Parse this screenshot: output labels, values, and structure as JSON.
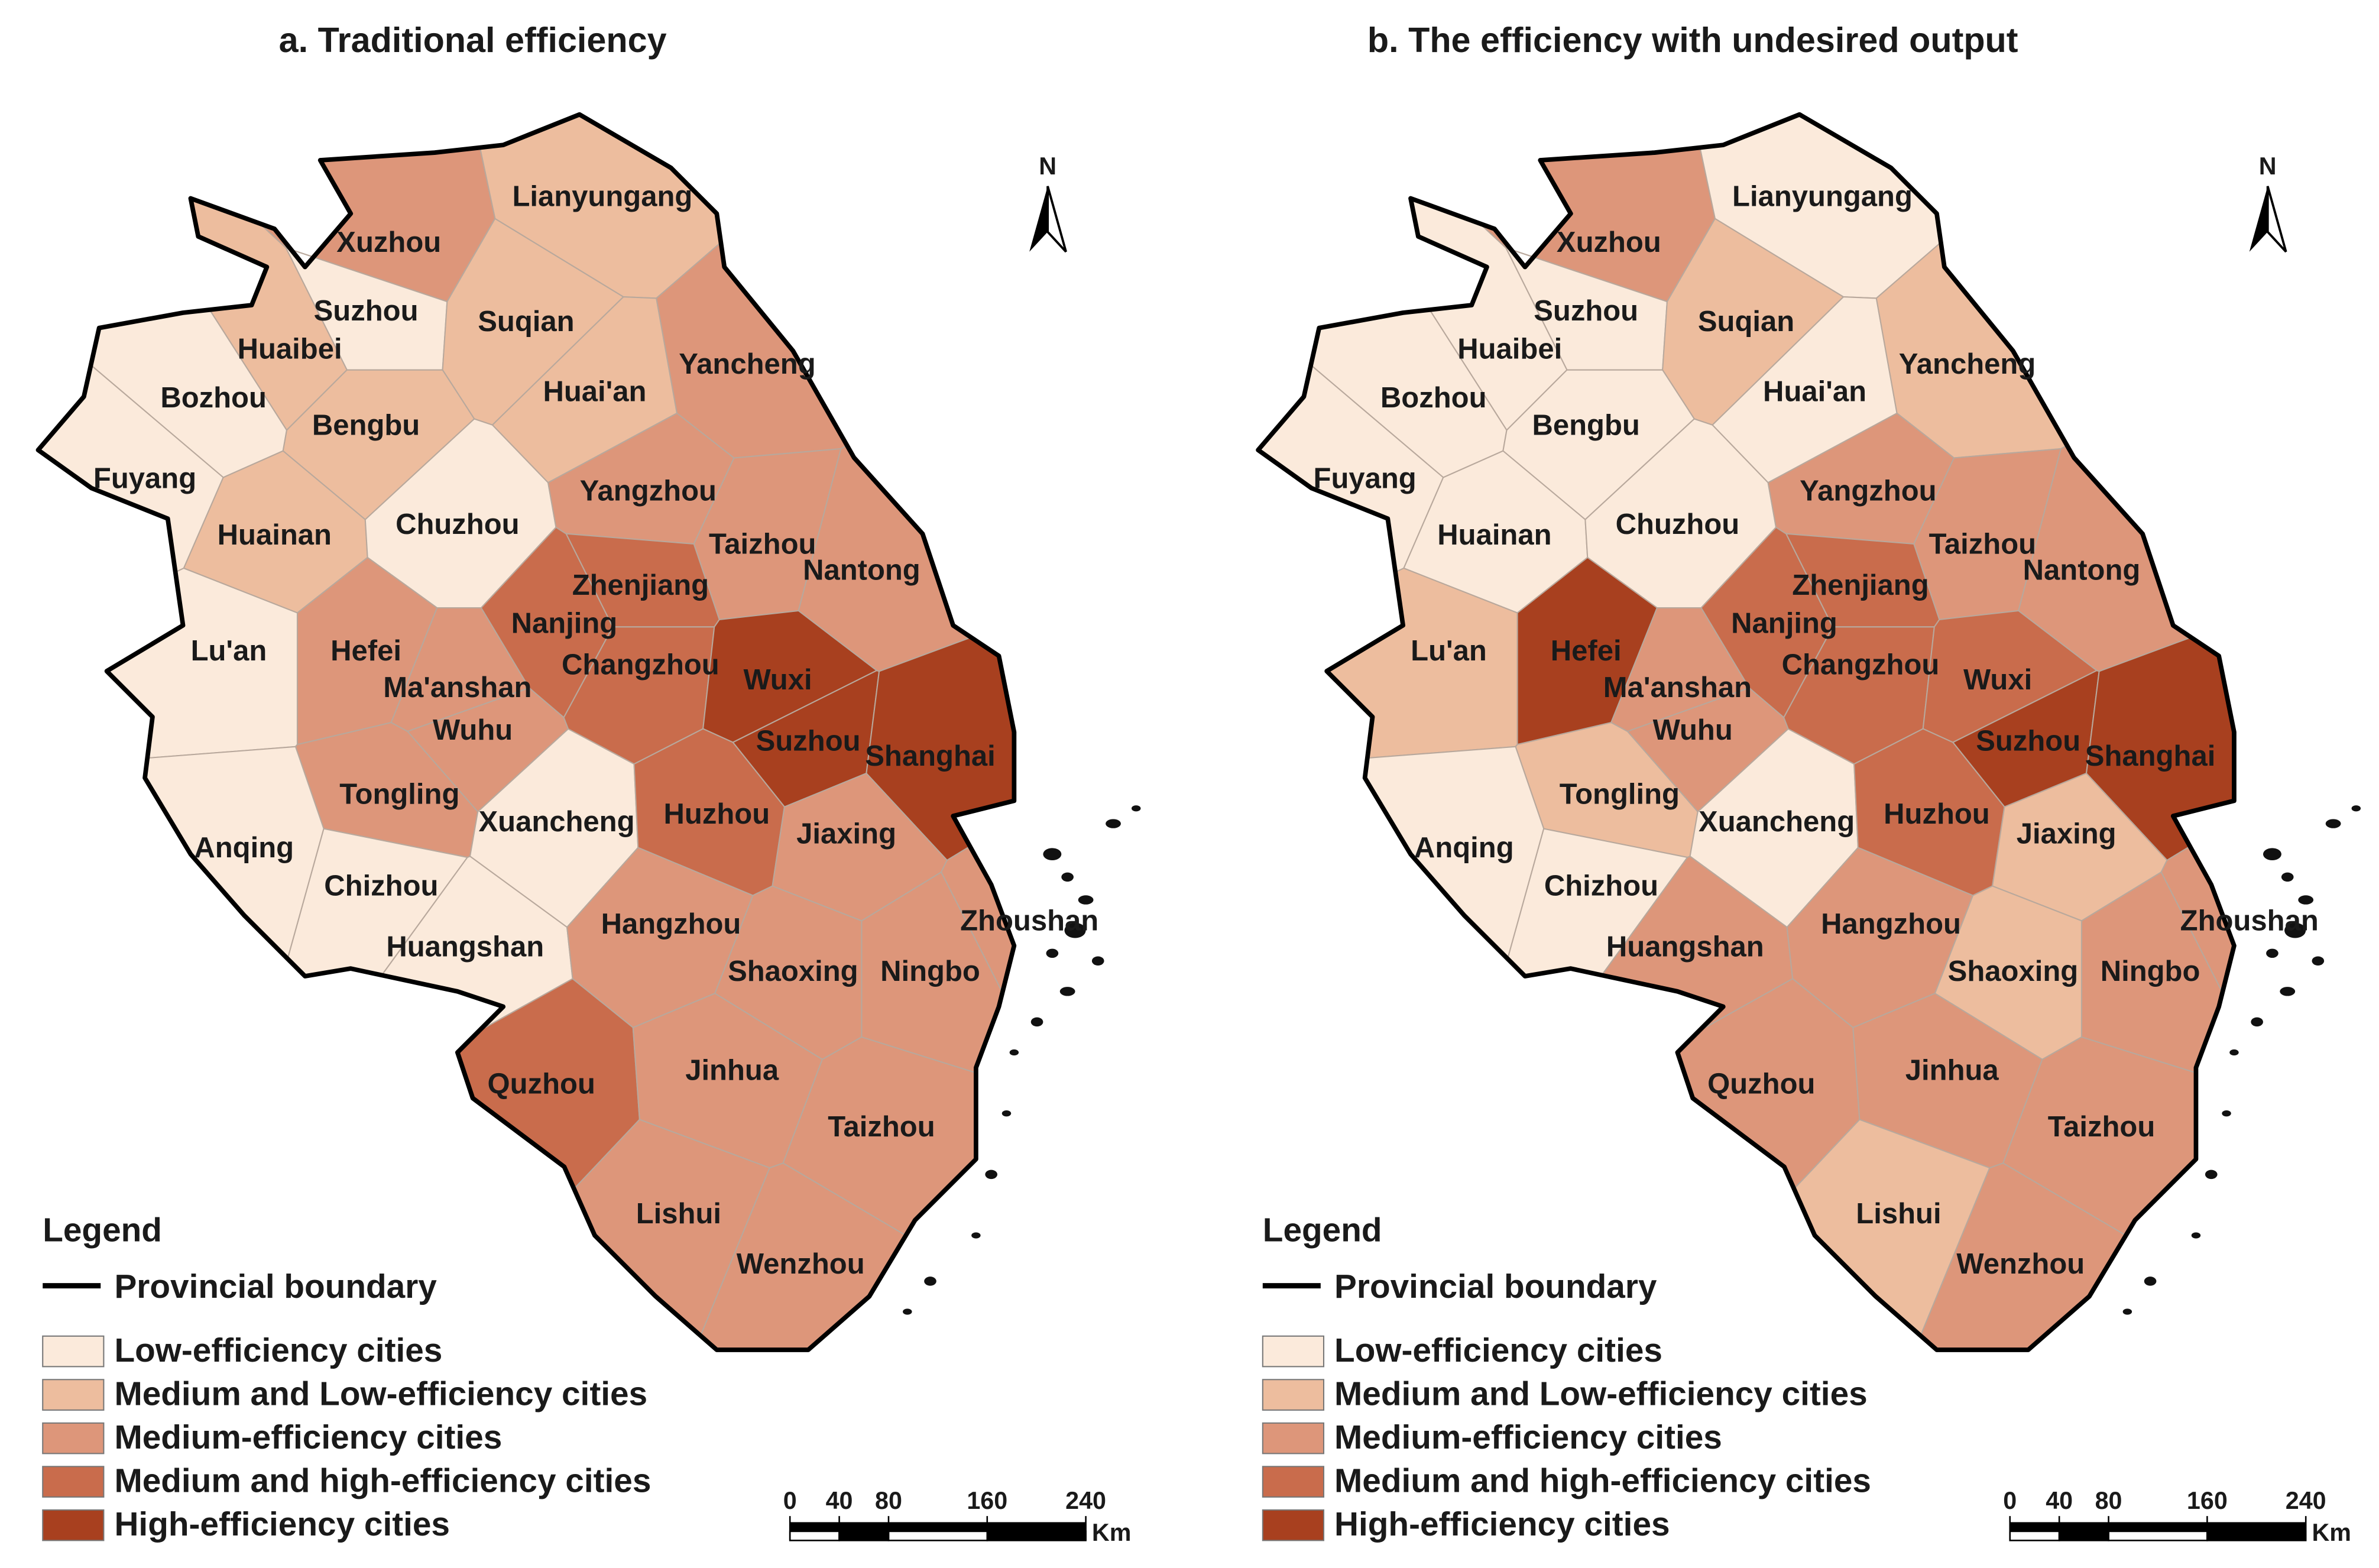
{
  "panels": [
    {
      "title": "a. Traditional efficiency",
      "levels": [
        1,
        2,
        0,
        1,
        1,
        1,
        2,
        0,
        1,
        0,
        1,
        0,
        2,
        2,
        2,
        3,
        3,
        0,
        2,
        2,
        2,
        3,
        4,
        4,
        4,
        2,
        0,
        0,
        0,
        0,
        3,
        2,
        2,
        2,
        2,
        2,
        3,
        2,
        2,
        2,
        2
      ]
    },
    {
      "title": "b. The efficiency with undesired output",
      "levels": [
        0,
        2,
        0,
        0,
        1,
        0,
        1,
        0,
        0,
        0,
        0,
        0,
        2,
        2,
        2,
        3,
        3,
        1,
        4,
        2,
        2,
        3,
        3,
        4,
        4,
        1,
        0,
        0,
        0,
        2,
        3,
        1,
        2,
        2,
        1,
        2,
        2,
        2,
        2,
        1,
        2
      ]
    }
  ],
  "cities": [
    "Lianyungang",
    "Xuzhou",
    "Suzhou",
    "Huaibei",
    "Suqian",
    "Huai'an",
    "Yancheng",
    "Bozhou",
    "Bengbu",
    "Fuyang",
    "Huainan",
    "Chuzhou",
    "Yangzhou",
    "Taizhou",
    "Nantong",
    "Zhenjiang",
    "Nanjing",
    "Lu'an",
    "Hefei",
    "Ma'anshan",
    "Wuhu",
    "Changzhou",
    "Wuxi",
    "Suzhou",
    "Shanghai",
    "Tongling",
    "Anqing",
    "Chizhou",
    "Xuancheng",
    "Huangshan",
    "Huzhou",
    "Jiaxing",
    "Hangzhou",
    "Zhoushan",
    "Shaoxing",
    "Ningbo",
    "Quzhou",
    "Jinhua",
    "Taizhou",
    "Lishui",
    "Wenzhou"
  ],
  "north": "N",
  "legend": {
    "title": "Legend",
    "boundary": "Provincial boundary",
    "items": [
      {
        "label": "Low-efficiency cities",
        "color": "#fbeadb"
      },
      {
        "label": "Medium and Low-efficiency cities",
        "color": "#edbd9e"
      },
      {
        "label": "Medium-efficiency cities",
        "color": "#dd967a"
      },
      {
        "label": "Medium and high-efficiency cities",
        "color": "#c96c4c"
      },
      {
        "label": "High-efficiency cities",
        "color": "#a8401f"
      }
    ]
  },
  "scale_bar": {
    "ticks": [
      0,
      40,
      80,
      160,
      240
    ],
    "unit": "Km"
  }
}
